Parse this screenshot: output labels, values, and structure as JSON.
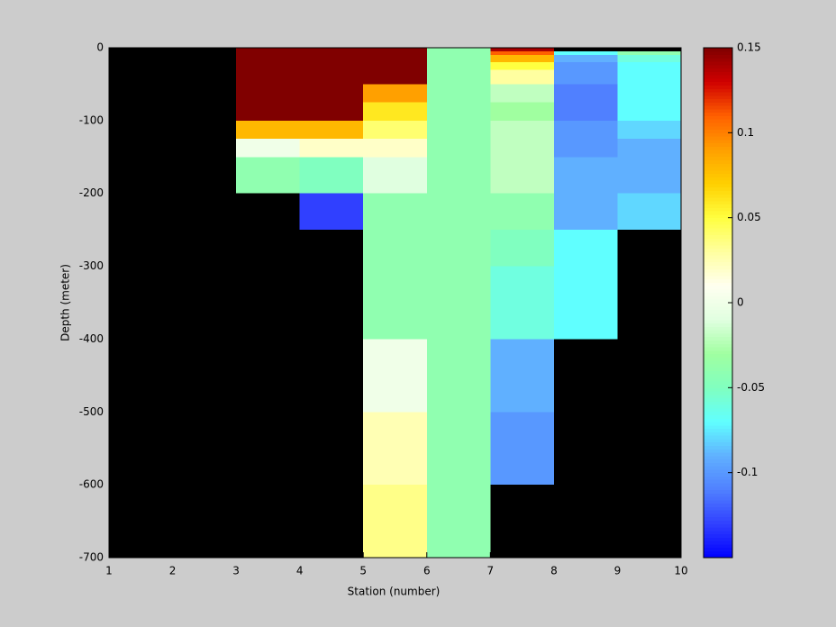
{
  "chart_data": {
    "type": "heatmap",
    "x_label": "Station (number)",
    "y_label": "Depth (meter)",
    "x": [
      1,
      2,
      3,
      4,
      5,
      6,
      7,
      8,
      9,
      10
    ],
    "y": [
      0,
      -5,
      -10,
      -20,
      -30,
      -50,
      -75,
      -100,
      -125,
      -150,
      -200,
      -250,
      -300,
      -400,
      -500,
      -600,
      -700
    ],
    "values": [
      [
        null,
        null,
        0.15,
        0.15,
        0.15,
        -0.04,
        0.14,
        null,
        null
      ],
      [
        null,
        null,
        0.15,
        0.15,
        0.15,
        -0.04,
        0.11,
        -0.07,
        -0.04
      ],
      [
        null,
        null,
        0.15,
        0.15,
        0.15,
        -0.04,
        0.08,
        -0.09,
        -0.06
      ],
      [
        null,
        null,
        0.15,
        0.15,
        0.15,
        -0.04,
        0.05,
        -0.1,
        -0.07
      ],
      [
        null,
        null,
        0.15,
        0.15,
        0.15,
        -0.04,
        0.03,
        -0.1,
        -0.07
      ],
      [
        null,
        null,
        0.15,
        0.15,
        0.09,
        -0.04,
        -0.02,
        -0.11,
        -0.07
      ],
      [
        null,
        null,
        0.15,
        0.15,
        0.06,
        -0.04,
        -0.03,
        -0.11,
        -0.07
      ],
      [
        null,
        null,
        0.08,
        0.08,
        0.04,
        -0.04,
        -0.02,
        -0.1,
        -0.08
      ],
      [
        null,
        null,
        0.0,
        0.02,
        0.02,
        -0.04,
        -0.02,
        -0.1,
        -0.09
      ],
      [
        null,
        null,
        -0.04,
        -0.05,
        -0.01,
        -0.04,
        -0.02,
        -0.09,
        -0.09
      ],
      [
        null,
        null,
        null,
        -0.13,
        -0.04,
        -0.04,
        -0.04,
        -0.09,
        -0.08
      ],
      [
        null,
        null,
        null,
        null,
        -0.04,
        -0.04,
        -0.05,
        -0.07,
        null
      ],
      [
        null,
        null,
        null,
        null,
        -0.04,
        -0.04,
        -0.06,
        -0.07,
        null
      ],
      [
        null,
        null,
        null,
        null,
        0.0,
        -0.04,
        -0.09,
        null,
        null
      ],
      [
        null,
        null,
        null,
        null,
        0.025,
        -0.04,
        -0.1,
        null,
        null
      ],
      [
        null,
        null,
        null,
        null,
        0.035,
        -0.04,
        null,
        null,
        null
      ]
    ],
    "xlim": [
      1,
      10
    ],
    "xticks": [
      1,
      2,
      3,
      4,
      5,
      6,
      7,
      8,
      9,
      10
    ],
    "ylim": [
      -700,
      0
    ],
    "yticks": [
      -700,
      -600,
      -500,
      -400,
      -300,
      -200,
      -100,
      0
    ],
    "clim": [
      -0.15,
      0.15
    ],
    "cticks": [
      -0.1,
      -0.05,
      0,
      0.05,
      0.1,
      0.15
    ],
    "background": "#000000",
    "colormap": [
      "#0000ff",
      "#3040ff",
      "#5080ff",
      "#60b0ff",
      "#60ffff",
      "#80ffc0",
      "#a0ffa0",
      "#e0ffe0",
      "#fffff0",
      "#ffffa0",
      "#ffff40",
      "#ffd000",
      "#ffa000",
      "#ff6000",
      "#d00000",
      "#800000"
    ]
  }
}
